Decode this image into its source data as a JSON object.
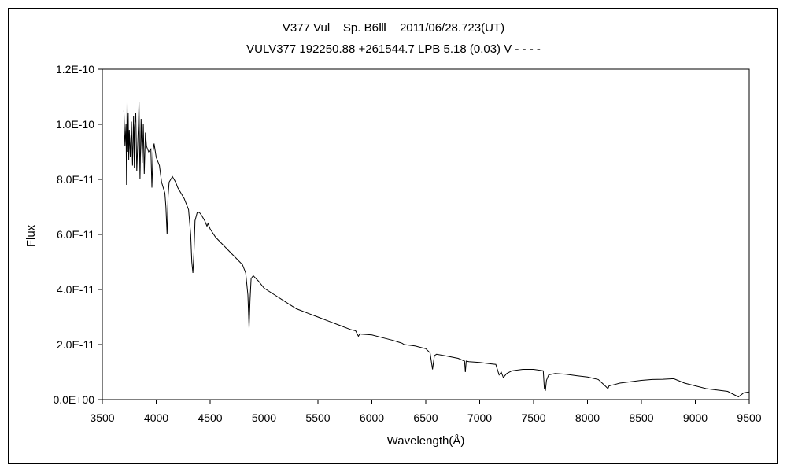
{
  "chart_data": {
    "type": "line",
    "title_lines": [
      "V377 Vul    Sp. B6Ⅲ    2011/06/28.723(UT)",
      "VULV377 192250.88 +261544.7 LPB 5.18 (0.03) V - - - -"
    ],
    "xlabel": "Wavelength(Å)",
    "ylabel": "Flux",
    "xlim": [
      3500,
      9500
    ],
    "ylim": [
      0,
      1.2e-10
    ],
    "x_ticks": [
      "3500",
      "4000",
      "4500",
      "5000",
      "5500",
      "6000",
      "6500",
      "7000",
      "7500",
      "8000",
      "8500",
      "9000",
      "9500"
    ],
    "y_ticks": [
      "0.0E+00",
      "2.0E-11",
      "4.0E-11",
      "6.0E-11",
      "8.0E-11",
      "1.0E-10",
      "1.2E-10"
    ],
    "grid": false,
    "legend": "none",
    "line_color": "#000000",
    "series": [
      {
        "x": [
          3700,
          3710,
          3720,
          3725,
          3730,
          3735,
          3740,
          3745,
          3750,
          3760,
          3770,
          3780,
          3790,
          3797,
          3800,
          3810,
          3820,
          3835,
          3840,
          3850,
          3860,
          3870,
          3880,
          3889,
          3900,
          3910,
          3930,
          3950,
          3960,
          3970,
          3980,
          4000,
          4030,
          4050,
          4080,
          4090,
          4101,
          4110,
          4120,
          4150,
          4180,
          4200,
          4230,
          4260,
          4300,
          4320,
          4330,
          4340,
          4350,
          4360,
          4380,
          4400,
          4420,
          4450,
          4471,
          4480,
          4500,
          4550,
          4600,
          4650,
          4700,
          4750,
          4800,
          4830,
          4850,
          4861,
          4870,
          4880,
          4900,
          4950,
          5000,
          5100,
          5200,
          5300,
          5400,
          5500,
          5600,
          5700,
          5800,
          5850,
          5875,
          5890,
          5900,
          6000,
          6100,
          6200,
          6280,
          6300,
          6400,
          6500,
          6540,
          6563,
          6580,
          6600,
          6700,
          6800,
          6860,
          6867,
          6875,
          6900,
          7000,
          7100,
          7150,
          7180,
          7200,
          7220,
          7250,
          7300,
          7400,
          7500,
          7590,
          7600,
          7610,
          7620,
          7640,
          7700,
          7800,
          7900,
          8000,
          8100,
          8150,
          8190,
          8200,
          8250,
          8300,
          8400,
          8500,
          8600,
          8700,
          8800,
          8900,
          9000,
          9100,
          9200,
          9300,
          9350,
          9400,
          9450,
          9500
        ],
        "y": [
          1.05e-10,
          9.2e-11,
          1e-10,
          7.8e-11,
          1.08e-10,
          9e-11,
          1.04e-10,
          8.7e-11,
          9.8e-11,
          8.8e-11,
          1.01e-10,
          8.5e-11,
          1.03e-10,
          8.4e-11,
          9.9e-11,
          1.04e-10,
          8.3e-11,
          1e-10,
          1.08e-10,
          8e-11,
          1.02e-10,
          8.6e-11,
          1e-10,
          8.2e-11,
          9.7e-11,
          9.2e-11,
          9e-11,
          9.1e-11,
          7.7e-11,
          9e-11,
          9.3e-11,
          8.8e-11,
          8.5e-11,
          7.9e-11,
          7.5e-11,
          7e-11,
          6e-11,
          7.4e-11,
          7.9e-11,
          8.1e-11,
          7.9e-11,
          7.7e-11,
          7.5e-11,
          7.3e-11,
          6.9e-11,
          6e-11,
          5e-11,
          4.6e-11,
          5.3e-11,
          6.5e-11,
          6.8e-11,
          6.8e-11,
          6.7e-11,
          6.5e-11,
          6.3e-11,
          6.4e-11,
          6.2e-11,
          5.9e-11,
          5.7e-11,
          5.5e-11,
          5.3e-11,
          5.1e-11,
          4.9e-11,
          4.6e-11,
          3.8e-11,
          2.6e-11,
          3.6e-11,
          4.4e-11,
          4.5e-11,
          4.3e-11,
          4.05e-11,
          3.8e-11,
          3.55e-11,
          3.3e-11,
          3.15e-11,
          3e-11,
          2.85e-11,
          2.7e-11,
          2.55e-11,
          2.5e-11,
          2.3e-11,
          2.4e-11,
          2.38e-11,
          2.35e-11,
          2.25e-11,
          2.15e-11,
          2.05e-11,
          2e-11,
          1.95e-11,
          1.85e-11,
          1.7e-11,
          1.1e-11,
          1.6e-11,
          1.65e-11,
          1.58e-11,
          1.5e-11,
          1.4e-11,
          1e-11,
          1.4e-11,
          1.38e-11,
          1.35e-11,
          1.3e-11,
          1.28e-11,
          9e-12,
          1e-11,
          8e-12,
          9.5e-12,
          1.05e-11,
          1.1e-11,
          1.1e-11,
          1.05e-11,
          4e-12,
          3.5e-12,
          7e-12,
          9e-12,
          9.5e-12,
          9.2e-12,
          8.7e-12,
          8.2e-12,
          7.3e-12,
          5.5e-12,
          4e-12,
          5e-12,
          5.5e-12,
          6e-12,
          6.5e-12,
          7e-12,
          7.3e-12,
          7.4e-12,
          7.6e-12,
          6e-12,
          5e-12,
          4e-12,
          3.5e-12,
          3e-12,
          2e-12,
          1e-12,
          2.5e-12,
          2.8e-12
        ]
      }
    ]
  }
}
